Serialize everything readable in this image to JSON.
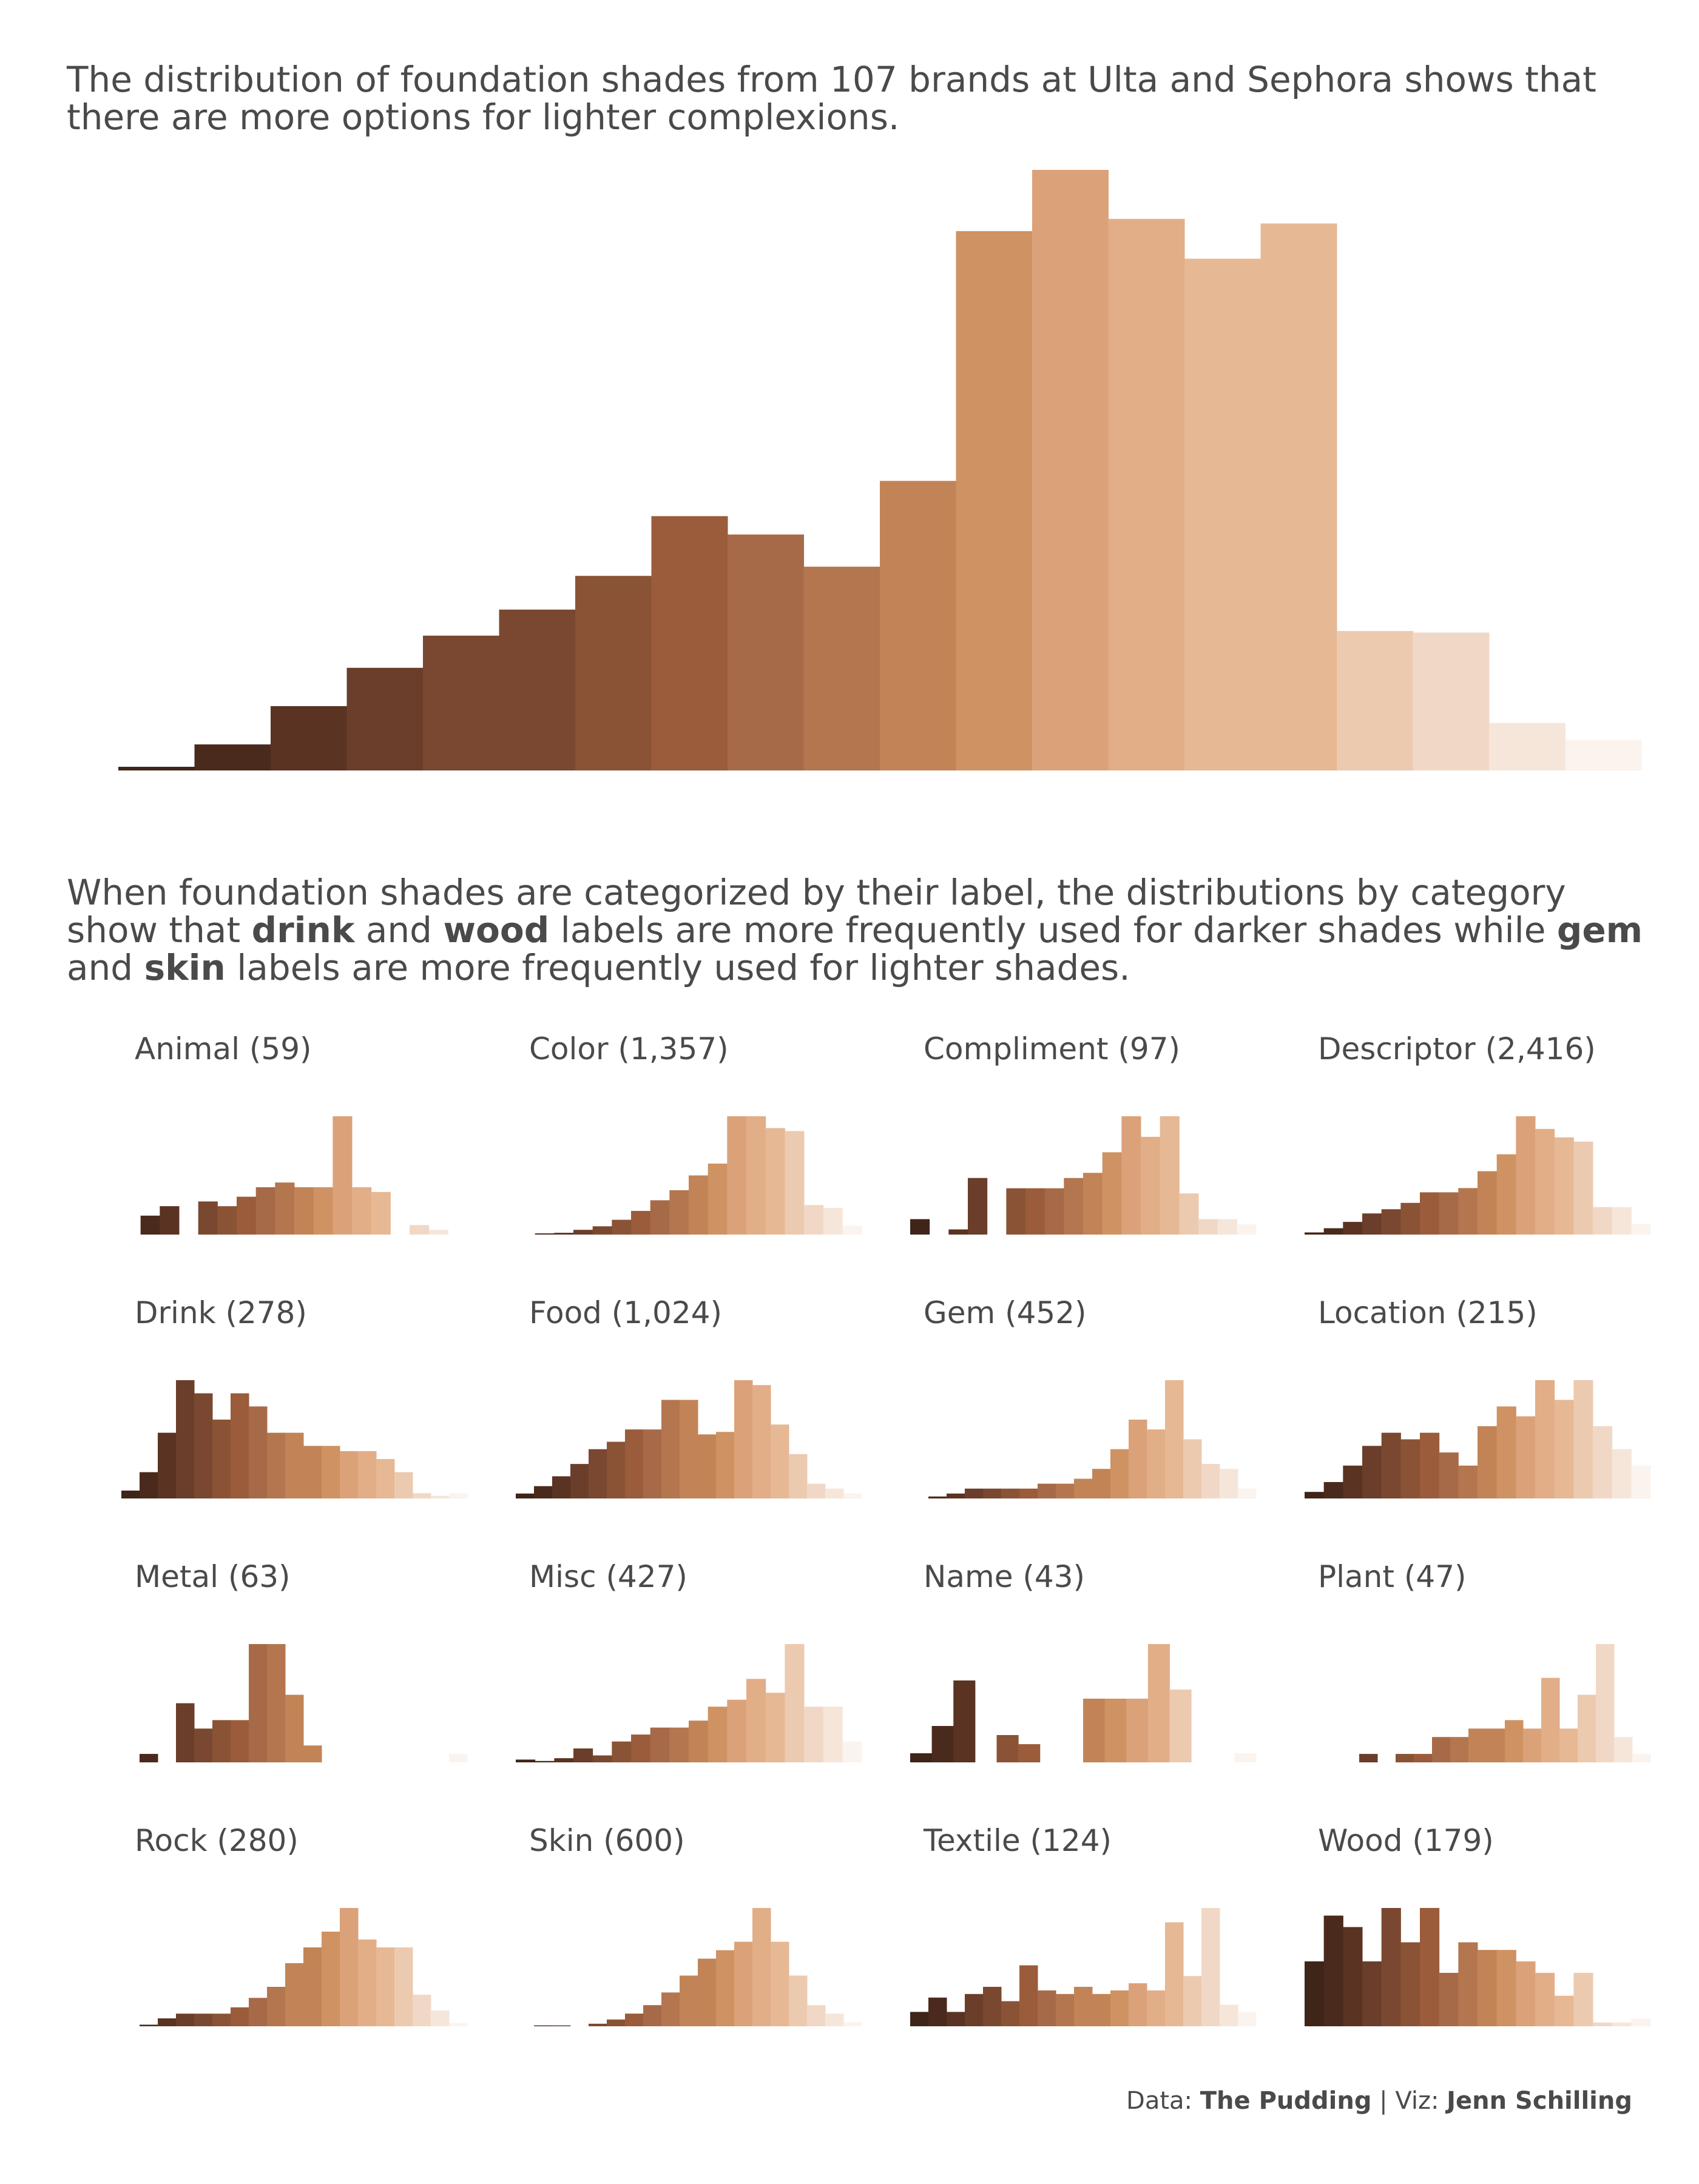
{
  "titles": {
    "main": "The distribution of foundation shades from 107 brands at Ulta and Sephora shows that there are more options for lighter complexions.",
    "facet_intro_1": "When foundation shades are categorized by their label, the distributions by category show that ",
    "facet_bold_drink": "drink",
    "facet_and_1": " and ",
    "facet_bold_wood": "wood",
    "facet_mid": " labels are more frequently used for darker shades while ",
    "facet_bold_gem": "gem",
    "facet_and_2": " and ",
    "facet_bold_skin": "skin",
    "facet_end": " labels are more frequently used for lighter shades."
  },
  "caption": {
    "data_label": "Data: ",
    "data_source": "The Pudding",
    "sep": " | Viz: ",
    "author": "Jenn Schilling"
  },
  "colors": {
    "bins": [
      "#3f2418",
      "#4a2a1c",
      "#5a3322",
      "#6a3e2a",
      "#7a4830",
      "#8a5335",
      "#9a5c3a",
      "#a76a48",
      "#b4764f",
      "#c28456",
      "#cf9262",
      "#dba27a",
      "#e2ae88",
      "#e6b894",
      "#eccab0",
      "#f1d8c6",
      "#f6e6da",
      "#fbf3ee"
    ]
  },
  "chart_data": [
    {
      "type": "bar",
      "title": "",
      "note": "Histogram of foundation shade lightness, dark to light",
      "values": [
        12,
        85,
        210,
        335,
        440,
        525,
        635,
        830,
        770,
        665,
        945,
        1760,
        1960,
        1800,
        1670,
        1785,
        455,
        450,
        155,
        100
      ]
    },
    {
      "type": "bar",
      "facets": [
        {
          "label": "Animal (59)",
          "values": [
            0,
            4,
            6,
            0,
            7,
            6,
            8,
            10,
            11,
            10,
            10,
            25,
            10,
            9,
            0,
            2,
            1,
            0
          ]
        },
        {
          "label": "Color (1,357)",
          "values": [
            0,
            2,
            3,
            8,
            14,
            25,
            40,
            58,
            75,
            100,
            120,
            200,
            200,
            180,
            175,
            50,
            45,
            15
          ]
        },
        {
          "label": "Compliment (97)",
          "values": [
            3,
            0,
            1,
            11,
            0,
            9,
            9,
            9,
            11,
            12,
            16,
            23,
            19,
            23,
            8,
            3,
            3,
            2
          ]
        },
        {
          "label": "Descriptor (2,416)",
          "values": [
            10,
            30,
            60,
            100,
            120,
            150,
            200,
            200,
            220,
            300,
            380,
            560,
            500,
            460,
            440,
            130,
            130,
            50
          ]
        },
        {
          "label": "Drink (278)",
          "values": [
            3,
            10,
            25,
            45,
            40,
            30,
            40,
            35,
            25,
            25,
            20,
            20,
            18,
            18,
            15,
            10,
            2,
            1,
            2
          ]
        },
        {
          "label": "Food (1,024)",
          "values": [
            10,
            25,
            45,
            70,
            100,
            115,
            140,
            140,
            200,
            200,
            130,
            135,
            240,
            230,
            150,
            90,
            30,
            20,
            10
          ]
        },
        {
          "label": "Gem (452)",
          "values": [
            0,
            2,
            5,
            10,
            10,
            10,
            10,
            15,
            15,
            20,
            30,
            50,
            80,
            70,
            120,
            60,
            35,
            30,
            10
          ]
        },
        {
          "label": "Location (215)",
          "values": [
            2,
            5,
            10,
            16,
            20,
            18,
            20,
            14,
            10,
            22,
            28,
            25,
            36,
            30,
            36,
            22,
            15,
            10
          ]
        },
        {
          "label": "Metal (63)",
          "values": [
            0,
            1,
            0,
            7,
            4,
            5,
            5,
            14,
            14,
            8,
            2,
            0,
            0,
            0,
            0,
            0,
            0,
            0,
            1
          ]
        },
        {
          "label": "Misc (427)",
          "values": [
            2,
            1,
            3,
            10,
            5,
            15,
            20,
            25,
            25,
            30,
            40,
            45,
            60,
            50,
            85,
            40,
            40,
            15
          ]
        },
        {
          "label": "Name (43)",
          "values": [
            1,
            4,
            9,
            0,
            3,
            2,
            0,
            0,
            7,
            7,
            7,
            13,
            8,
            0,
            0,
            1
          ]
        },
        {
          "label": "Plant (47)",
          "values": [
            0,
            0,
            0,
            1,
            0,
            1,
            1,
            3,
            3,
            4,
            4,
            5,
            4,
            10,
            4,
            8,
            14,
            3,
            1
          ]
        },
        {
          "label": "Rock (280)",
          "values": [
            0,
            1,
            5,
            8,
            8,
            8,
            12,
            18,
            25,
            40,
            50,
            60,
            75,
            55,
            50,
            50,
            20,
            10,
            2
          ]
        },
        {
          "label": "Skin (600)",
          "values": [
            0,
            1,
            1,
            0,
            3,
            8,
            15,
            25,
            40,
            60,
            80,
            90,
            100,
            140,
            100,
            60,
            25,
            15,
            5
          ]
        },
        {
          "label": "Textile (124)",
          "values": [
            4,
            8,
            4,
            9,
            11,
            7,
            17,
            10,
            9,
            11,
            9,
            10,
            12,
            10,
            29,
            14,
            33,
            6,
            4
          ]
        },
        {
          "label": "Wood (179)",
          "values": [
            17,
            29,
            26,
            17,
            31,
            22,
            31,
            14,
            22,
            20,
            20,
            17,
            14,
            8,
            14,
            1,
            1,
            2
          ]
        }
      ]
    }
  ]
}
